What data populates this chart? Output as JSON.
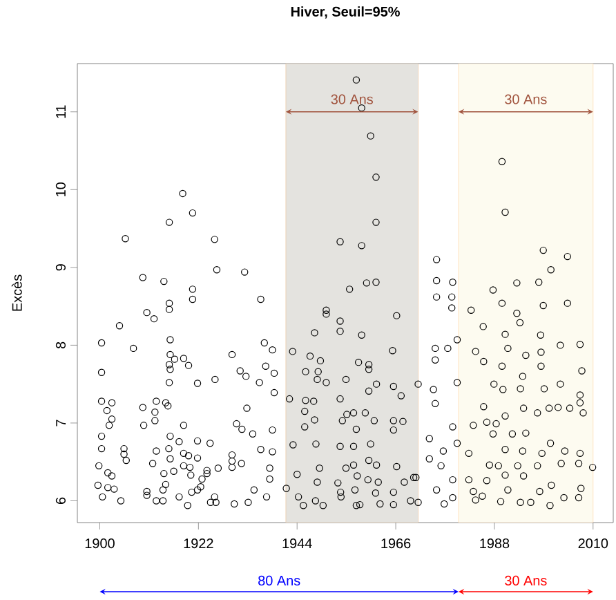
{
  "chart_data": {
    "type": "scatter",
    "title": "Hiver, Seuil=95%",
    "ylabel": "Excès",
    "color": "#000000",
    "marker": "circle",
    "xlim": [
      1895,
      2014.5
    ],
    "ylim": [
      5.72,
      11.62
    ],
    "xticks": [
      1900,
      1922,
      1944,
      1966,
      1988,
      2010
    ],
    "yticks": [
      6,
      7,
      8,
      9,
      10,
      11
    ],
    "bands": [
      {
        "axis": "x",
        "from": 1941.5,
        "to": 1971,
        "label": "30 Ans",
        "color": "#e4e3df"
      },
      {
        "axis": "x",
        "from": 1980,
        "to": 2010,
        "label": "30 Ans",
        "color": "#fdfbf0"
      }
    ],
    "annotations": [
      "80 Ans",
      "30 Ans"
    ],
    "x": [
      1918.5,
      1920.7,
      1915.5,
      1905.7,
      1925.6,
      1926.1,
      1909.6,
      1914.3,
      1920.7,
      1932.3,
      1957.2,
      1958.4,
      1960.4,
      1961.6,
      1961.6,
      1953.6,
      1958.4,
      1959.5,
      1961.6,
      1955.7,
      1989.7,
      1990.4,
      1998.9,
      2004.3,
      2000.6,
      1975.1,
      1975.1,
      1978.7,
      1993.0,
      1997.9,
      1987.7,
      1920.7,
      1915.5,
      1915.5,
      1910.5,
      1912.1,
      1904.4,
      1900.4,
      1907.5,
      1915.7,
      1915.7,
      1916.7,
      1918.7,
      1919.8,
      1915.5,
      1915.7,
      1915.5,
      1900.4,
      1921.8,
      1925.7,
      1929.5,
      1931.3,
      1900.4,
      1902.7,
      1901.6,
      1902.7,
      1902.1,
      1900.4,
      1900.4,
      1909.6,
      1912.3,
      1912.6,
      1914.7,
      1915.2,
      1912.3,
      1909.8,
      1918.7,
      1915.7,
      1917.7,
      1921.8,
      1924.6,
      1905.4,
      1905.4,
      1905.9,
      1912.6,
      1915.4,
      1915.7,
      1918.7,
      1919.8,
      1921.8,
      1899.8,
      1911.8,
      1918.7,
      1920.1,
      1923.9,
      1926.4,
      1929.5,
      1901.8,
      1902.7,
      1914.3,
      1916.5,
      1920.3,
      1922.8,
      1923.9,
      1899.6,
      1901.8,
      1903.2,
      1900.6,
      1904.7,
      1910.5,
      1910.5,
      1914.1,
      1914.7,
      1912.6,
      1914.1,
      1917.7,
      1919.6,
      1920.5,
      1921.8,
      1922.5,
      1924.7,
      1925.9,
      1925.6,
      1930.0,
      1929.5,
      1929.5,
      1935.9,
      1936.7,
      1938.5,
      1937.0,
      1938.9,
      1932.6,
      1935.6,
      1938.9,
      1932.8,
      1930.5,
      1931.7,
      1938.5,
      1934.1,
      1935.9,
      1938.5,
      1931.6,
      1937.9,
      1937.9,
      1934.4,
      1933.1,
      1937.2,
      1941.6,
      1942.3,
      1950.5,
      1950.5,
      1953.6,
      1953.6,
      1947.9,
      1958.4,
      1966.2,
      1965.3,
      1943.0,
      1946.9,
      1949.2,
      1945.9,
      1948.7,
      1948.5,
      1950.5,
      1954.9,
      1957.7,
      1960.0,
      1960.0,
      1961.7,
      1960.0,
      1965.5,
      1967.2,
      1971.0,
      1945.9,
      1947.7,
      1945.7,
      1947.9,
      1945.7,
      1953.6,
      1955.1,
      1956.6,
      1959.2,
      1961.2,
      1954.1,
      1957.2,
      1965.5,
      1967.6,
      1965.5,
      1943.1,
      1948.2,
      1953.6,
      1956.6,
      1960.4,
      1944.0,
      1949.0,
      1948.5,
      1954.9,
      1956.6,
      1960.0,
      1961.7,
      1957.4,
      1959.8,
      1962.1,
      1966.2,
      1967.9,
      1970.5,
      1953.1,
      1953.7,
      1956.9,
      1961.5,
      1965.5,
      1944.3,
      1945.4,
      1948.1,
      1949.8,
      1957.2,
      1958.0,
      1962.5,
      1965.5,
      1969.3,
      1971.0,
      1953.8,
      1975.1,
      1978.5,
      1978.5,
      1982.8,
      1989.7,
      1993.0,
      1993.7,
      1998.9,
      2004.3,
      1985.5,
      1990.4,
      1998.3,
      1991.0,
      1983.8,
      1998.4,
      2002.7,
      2007.1,
      1974.8,
      1977.6,
      1979.7,
      1974.8,
      1985.6,
      1989.7,
      1995.0,
      1998.4,
      2007.5,
      1994.3,
      2002.7,
      1987.9,
      1989.9,
      1993.8,
      1999.1,
      1979.7,
      1974.4,
      1974.8,
      1985.6,
      1994.5,
      1997.6,
      2000.2,
      2002.2,
      2004.8,
      2007.1,
      2007.8,
      2007.1,
      1983.3,
      1986.3,
      1988.4,
      1990.4,
      1987.7,
      1992.0,
      1995.0,
      2000.5,
      2003.7,
      2007.1,
      2009.9,
      1982.3,
      1990.4,
      1994.3,
      1998.6,
      1986.9,
      1988.9,
      1990.4,
      1993.2,
      1997.6,
      2002.9,
      2006.8,
      1982.3,
      1986.3,
      1994.5,
      2000.7,
      2007.3,
      1983.3,
      1985.3,
      1991.0,
      1998.1,
      1983.8,
      1989.4,
      1993.8,
      1996.1,
      2000.4,
      2003.5,
      2006.8,
      1973.5,
      1976.6,
      1978.7,
      1979.7,
      1973.5,
      1976.1,
      1978.7,
      1975.1,
      1976.8,
      1978.7,
      1970.0
    ],
    "values": [
      9.95,
      9.7,
      9.58,
      9.37,
      9.36,
      8.97,
      8.87,
      8.82,
      8.72,
      8.94,
      11.41,
      11.05,
      10.69,
      10.16,
      9.58,
      9.33,
      9.28,
      8.8,
      8.81,
      8.72,
      10.36,
      9.71,
      9.22,
      9.14,
      8.97,
      9.1,
      8.83,
      8.81,
      8.8,
      8.81,
      8.71,
      8.59,
      8.54,
      8.46,
      8.42,
      8.34,
      8.25,
      8.03,
      7.96,
      8.07,
      7.88,
      7.82,
      7.83,
      7.74,
      7.75,
      7.69,
      7.52,
      7.65,
      7.51,
      7.56,
      7.88,
      7.67,
      7.28,
      7.26,
      7.16,
      7.05,
      6.97,
      6.83,
      6.67,
      7.2,
      7.14,
      7.28,
      7.26,
      7.22,
      7.03,
      6.97,
      6.97,
      6.83,
      6.76,
      6.77,
      6.74,
      6.67,
      6.6,
      6.52,
      6.64,
      6.67,
      6.54,
      6.61,
      6.58,
      6.55,
      6.45,
      6.48,
      6.45,
      6.43,
      6.39,
      6.42,
      6.43,
      6.36,
      6.32,
      6.35,
      6.38,
      6.33,
      6.28,
      6.35,
      6.2,
      6.17,
      6.15,
      6.05,
      6.0,
      6.12,
      6.07,
      6.14,
      6.21,
      6.0,
      6.0,
      6.05,
      5.94,
      6.11,
      6.14,
      6.18,
      5.98,
      5.98,
      6.05,
      5.96,
      6.51,
      6.59,
      8.59,
      8.03,
      7.94,
      7.73,
      7.64,
      7.6,
      7.52,
      7.39,
      7.19,
      6.99,
      6.92,
      6.91,
      6.86,
      6.66,
      6.63,
      6.48,
      6.42,
      6.28,
      6.14,
      5.98,
      6.05,
      6.16,
      7.31,
      8.45,
      8.4,
      8.31,
      8.18,
      8.16,
      8.13,
      8.38,
      7.93,
      7.92,
      7.86,
      7.8,
      7.66,
      7.66,
      7.56,
      7.52,
      7.56,
      7.78,
      7.75,
      7.69,
      7.5,
      7.41,
      7.47,
      7.35,
      7.5,
      7.29,
      7.28,
      7.15,
      7.04,
      6.95,
      7.31,
      7.11,
      7.13,
      7.13,
      7.03,
      7.03,
      6.92,
      7.03,
      7.02,
      6.91,
      6.72,
      6.73,
      6.7,
      6.7,
      6.73,
      6.34,
      6.42,
      6.24,
      6.42,
      6.46,
      6.52,
      6.46,
      6.32,
      6.27,
      6.24,
      6.44,
      6.24,
      6.3,
      6.23,
      6.11,
      6.14,
      6.1,
      6.11,
      6.05,
      5.94,
      6.0,
      5.94,
      5.94,
      5.95,
      5.96,
      5.95,
      6.0,
      5.98,
      6.05,
      8.62,
      8.62,
      8.48,
      8.45,
      8.54,
      8.41,
      8.29,
      8.51,
      8.54,
      8.24,
      8.14,
      8.13,
      7.96,
      7.92,
      7.91,
      8.0,
      8.01,
      7.96,
      7.96,
      8.07,
      7.81,
      7.79,
      7.73,
      7.87,
      7.73,
      7.67,
      7.6,
      7.5,
      7.5,
      7.43,
      7.44,
      7.44,
      7.52,
      7.43,
      7.25,
      7.21,
      7.19,
      7.13,
      7.19,
      7.2,
      7.19,
      7.26,
      7.13,
      7.36,
      6.97,
      7.01,
      6.99,
      7.09,
      6.86,
      6.86,
      6.87,
      6.74,
      6.64,
      6.61,
      6.43,
      6.61,
      6.66,
      6.64,
      6.61,
      6.46,
      6.45,
      6.33,
      6.45,
      6.45,
      6.48,
      6.48,
      6.27,
      6.26,
      6.32,
      6.2,
      6.16,
      6.12,
      6.06,
      6.14,
      6.12,
      6.01,
      5.99,
      5.98,
      5.98,
      5.94,
      6.04,
      6.04,
      6.8,
      6.64,
      6.95,
      6.74,
      6.54,
      6.45,
      6.27,
      6.14,
      5.96,
      6.04,
      6.3
    ]
  }
}
